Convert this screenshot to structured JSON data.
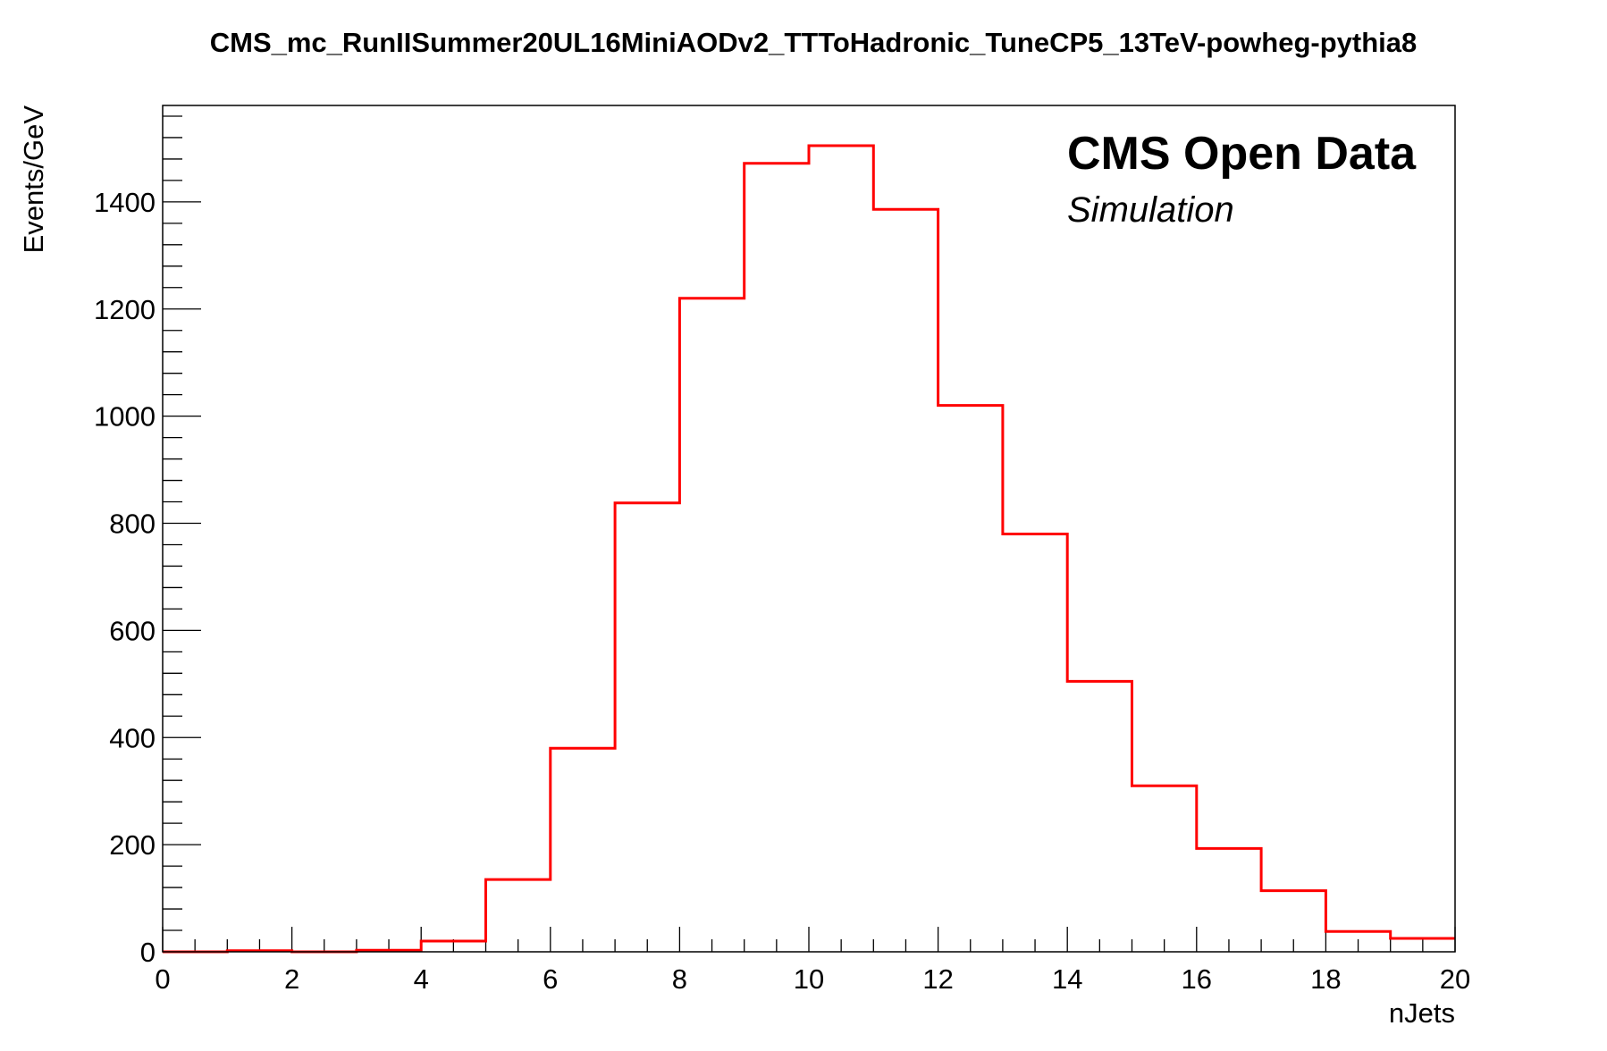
{
  "chart_data": {
    "type": "histogram",
    "title": "CMS_mc_RunIISummer20UL16MiniAODv2_TTToHadronic_TuneCP5_13TeV-powheg-pythia8",
    "xlabel": "nJets",
    "ylabel": "Events/GeV",
    "xlim": [
      0,
      20
    ],
    "ylim": [
      0,
      1580
    ],
    "x_ticks": [
      0,
      2,
      4,
      6,
      8,
      10,
      12,
      14,
      16,
      18,
      20
    ],
    "y_ticks": [
      0,
      200,
      400,
      600,
      800,
      1000,
      1200,
      1400
    ],
    "bin_edges": [
      0,
      1,
      2,
      3,
      4,
      5,
      6,
      7,
      8,
      9,
      10,
      11,
      12,
      13,
      14,
      15,
      16,
      17,
      18,
      19,
      20
    ],
    "values": [
      0,
      2,
      0,
      3,
      20,
      135,
      380,
      838,
      1220,
      1472,
      1505,
      1386,
      1020,
      780,
      505,
      310,
      193,
      114,
      38,
      25
    ],
    "color": "#ff0000",
    "annotations": {
      "experiment": "CMS Open Data",
      "status": "Simulation"
    },
    "grid": false,
    "legend": "none"
  }
}
